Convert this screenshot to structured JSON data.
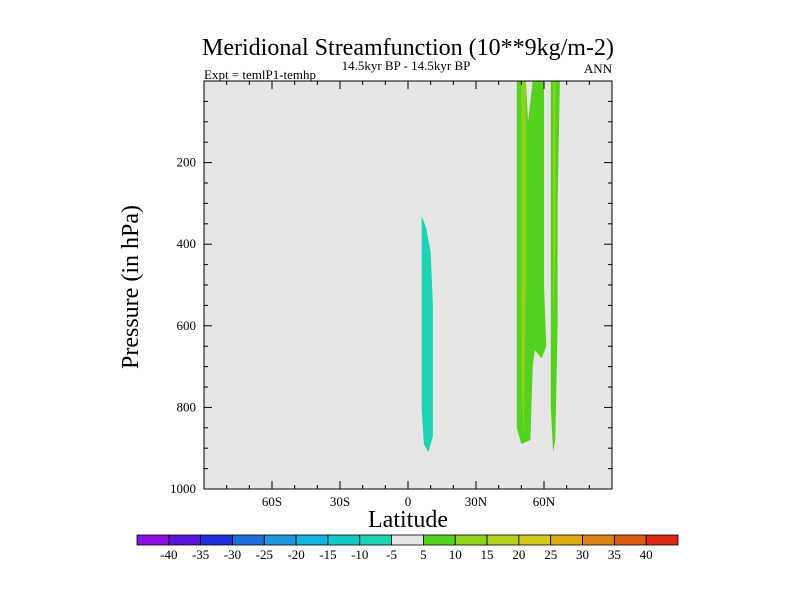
{
  "chart_data": {
    "type": "contour",
    "title": "Meridional Streamfunction (10**9kg/m-2)",
    "subtitle": "14.5kyr BP - 14.5kyr BP",
    "left_label": "Expt = temlP1-temhp",
    "right_label": "ANN",
    "xlabel": "Latitude",
    "ylabel": "Pressure (in hPa)",
    "xlim": [
      -90,
      90
    ],
    "ylim": [
      0,
      1000
    ],
    "x_ticks": [
      {
        "value": -60,
        "label": "60S"
      },
      {
        "value": -30,
        "label": "30S"
      },
      {
        "value": 0,
        "label": "0"
      },
      {
        "value": 30,
        "label": "30N"
      },
      {
        "value": 60,
        "label": "60N"
      }
    ],
    "y_ticks": [
      {
        "value": 200,
        "label": "200"
      },
      {
        "value": 400,
        "label": "400"
      },
      {
        "value": 600,
        "label": "600"
      },
      {
        "value": 800,
        "label": "800"
      },
      {
        "value": 1000,
        "label": "1000"
      }
    ],
    "background_color": "#e6e6e6",
    "regions": [
      {
        "name": "cell-equator-negative",
        "band": "-10 to -5",
        "color": "#1ed2b4",
        "polygon": [
          [
            6,
            330
          ],
          [
            8,
            360
          ],
          [
            10,
            420
          ],
          [
            11,
            550
          ],
          [
            11,
            700
          ],
          [
            11,
            870
          ],
          [
            9,
            910
          ],
          [
            7,
            890
          ],
          [
            6,
            800
          ],
          [
            6,
            600
          ],
          [
            6,
            400
          ]
        ]
      },
      {
        "name": "cell-north-positive",
        "band": "5 to 10",
        "color": "#55d21e",
        "polygon": [
          [
            48,
            0
          ],
          [
            52,
            0
          ],
          [
            53,
            100
          ],
          [
            55,
            0
          ],
          [
            60,
            0
          ],
          [
            60,
            250
          ],
          [
            60,
            500
          ],
          [
            61,
            650
          ],
          [
            59,
            680
          ],
          [
            56,
            660
          ],
          [
            55,
            700
          ],
          [
            54,
            880
          ],
          [
            50,
            890
          ],
          [
            48,
            850
          ],
          [
            48,
            600
          ],
          [
            48,
            300
          ]
        ]
      },
      {
        "name": "cell-north-positive-strong",
        "band": "10 to 15",
        "color": "#8cd21e",
        "polygon": [
          [
            50,
            0
          ],
          [
            52,
            0
          ],
          [
            52,
            250
          ],
          [
            52,
            500
          ],
          [
            51,
            880
          ],
          [
            50,
            700
          ],
          [
            50,
            400
          ],
          [
            50,
            150
          ]
        ]
      },
      {
        "name": "cell-60n-positive",
        "band": "5 to 10",
        "color": "#55d21e",
        "polygon": [
          [
            63,
            0
          ],
          [
            67,
            0
          ],
          [
            66,
            300
          ],
          [
            66,
            600
          ],
          [
            65,
            880
          ],
          [
            64,
            910
          ],
          [
            63,
            800
          ],
          [
            63,
            500
          ]
        ]
      },
      {
        "name": "cell-60n-positive-strong",
        "band": "10 to 15",
        "color": "#8cd21e",
        "polygon": [
          [
            64,
            0
          ],
          [
            65,
            0
          ],
          [
            65,
            400
          ],
          [
            64,
            600
          ],
          [
            64,
            300
          ]
        ]
      }
    ],
    "colorbar": {
      "labels": [
        "-40",
        "-35",
        "-30",
        "-25",
        "-20",
        "-15",
        "-10",
        "-5",
        "5",
        "10",
        "15",
        "20",
        "25",
        "30",
        "35",
        "40"
      ],
      "colors": [
        "#8c14dc",
        "#5a14dc",
        "#1e32dc",
        "#1e6edc",
        "#1e96dc",
        "#14b4dc",
        "#14c8c8",
        "#1ed2b4",
        "#e6e6e6",
        "#55d21e",
        "#8cd21e",
        "#b4d21e",
        "#d2c81e",
        "#dcaa14",
        "#dc8214",
        "#dc5a14",
        "#dc2814"
      ]
    }
  }
}
